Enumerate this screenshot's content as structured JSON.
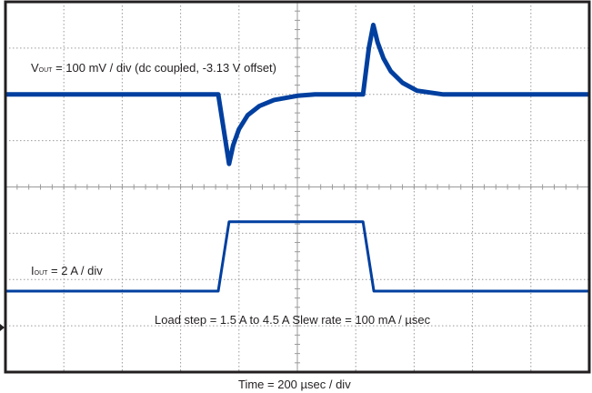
{
  "chart_data": {
    "type": "line",
    "title": "",
    "xlabel": "Time = 200 µsec / div",
    "grid": true,
    "grid_divisions": {
      "x": 10,
      "y": 8
    },
    "xlim": [
      0,
      2000
    ],
    "x_units": "µs",
    "colors": {
      "trace": "#003f9f",
      "frame": "#231f20",
      "grid": "#9a9a9a"
    },
    "annotations": {
      "vout_prefix": "V",
      "vout_sub": "OUT",
      "vout_text": " = 100 mV / div (dc coupled, -3.13 V offset)",
      "iout_prefix": "I",
      "iout_sub": "OUT",
      "iout_text": " = 2 A / div",
      "load_step": "Load step = 1.5 A to 4.5 A  Slew rate = 100 mA / µsec"
    },
    "series": [
      {
        "name": "VOUT",
        "units": "mV (deviation)",
        "scale_per_div": 100,
        "points": [
          [
            0,
            0
          ],
          [
            729,
            0
          ],
          [
            766,
            -150
          ],
          [
            780,
            -110
          ],
          [
            800,
            -75
          ],
          [
            830,
            -45
          ],
          [
            870,
            -25
          ],
          [
            920,
            -12
          ],
          [
            1000,
            -3
          ],
          [
            1060,
            0
          ],
          [
            1225,
            0
          ],
          [
            1245,
            100
          ],
          [
            1260,
            150
          ],
          [
            1275,
            112
          ],
          [
            1295,
            78
          ],
          [
            1320,
            50
          ],
          [
            1360,
            25
          ],
          [
            1410,
            8
          ],
          [
            1500,
            0
          ],
          [
            2000,
            0
          ]
        ]
      },
      {
        "name": "IOUT",
        "units": "A",
        "scale_per_div": 2,
        "points": [
          [
            0,
            1.5
          ],
          [
            729,
            1.5
          ],
          [
            766,
            4.5
          ],
          [
            1225,
            4.5
          ],
          [
            1262,
            1.5
          ],
          [
            2000,
            1.5
          ]
        ]
      }
    ]
  }
}
